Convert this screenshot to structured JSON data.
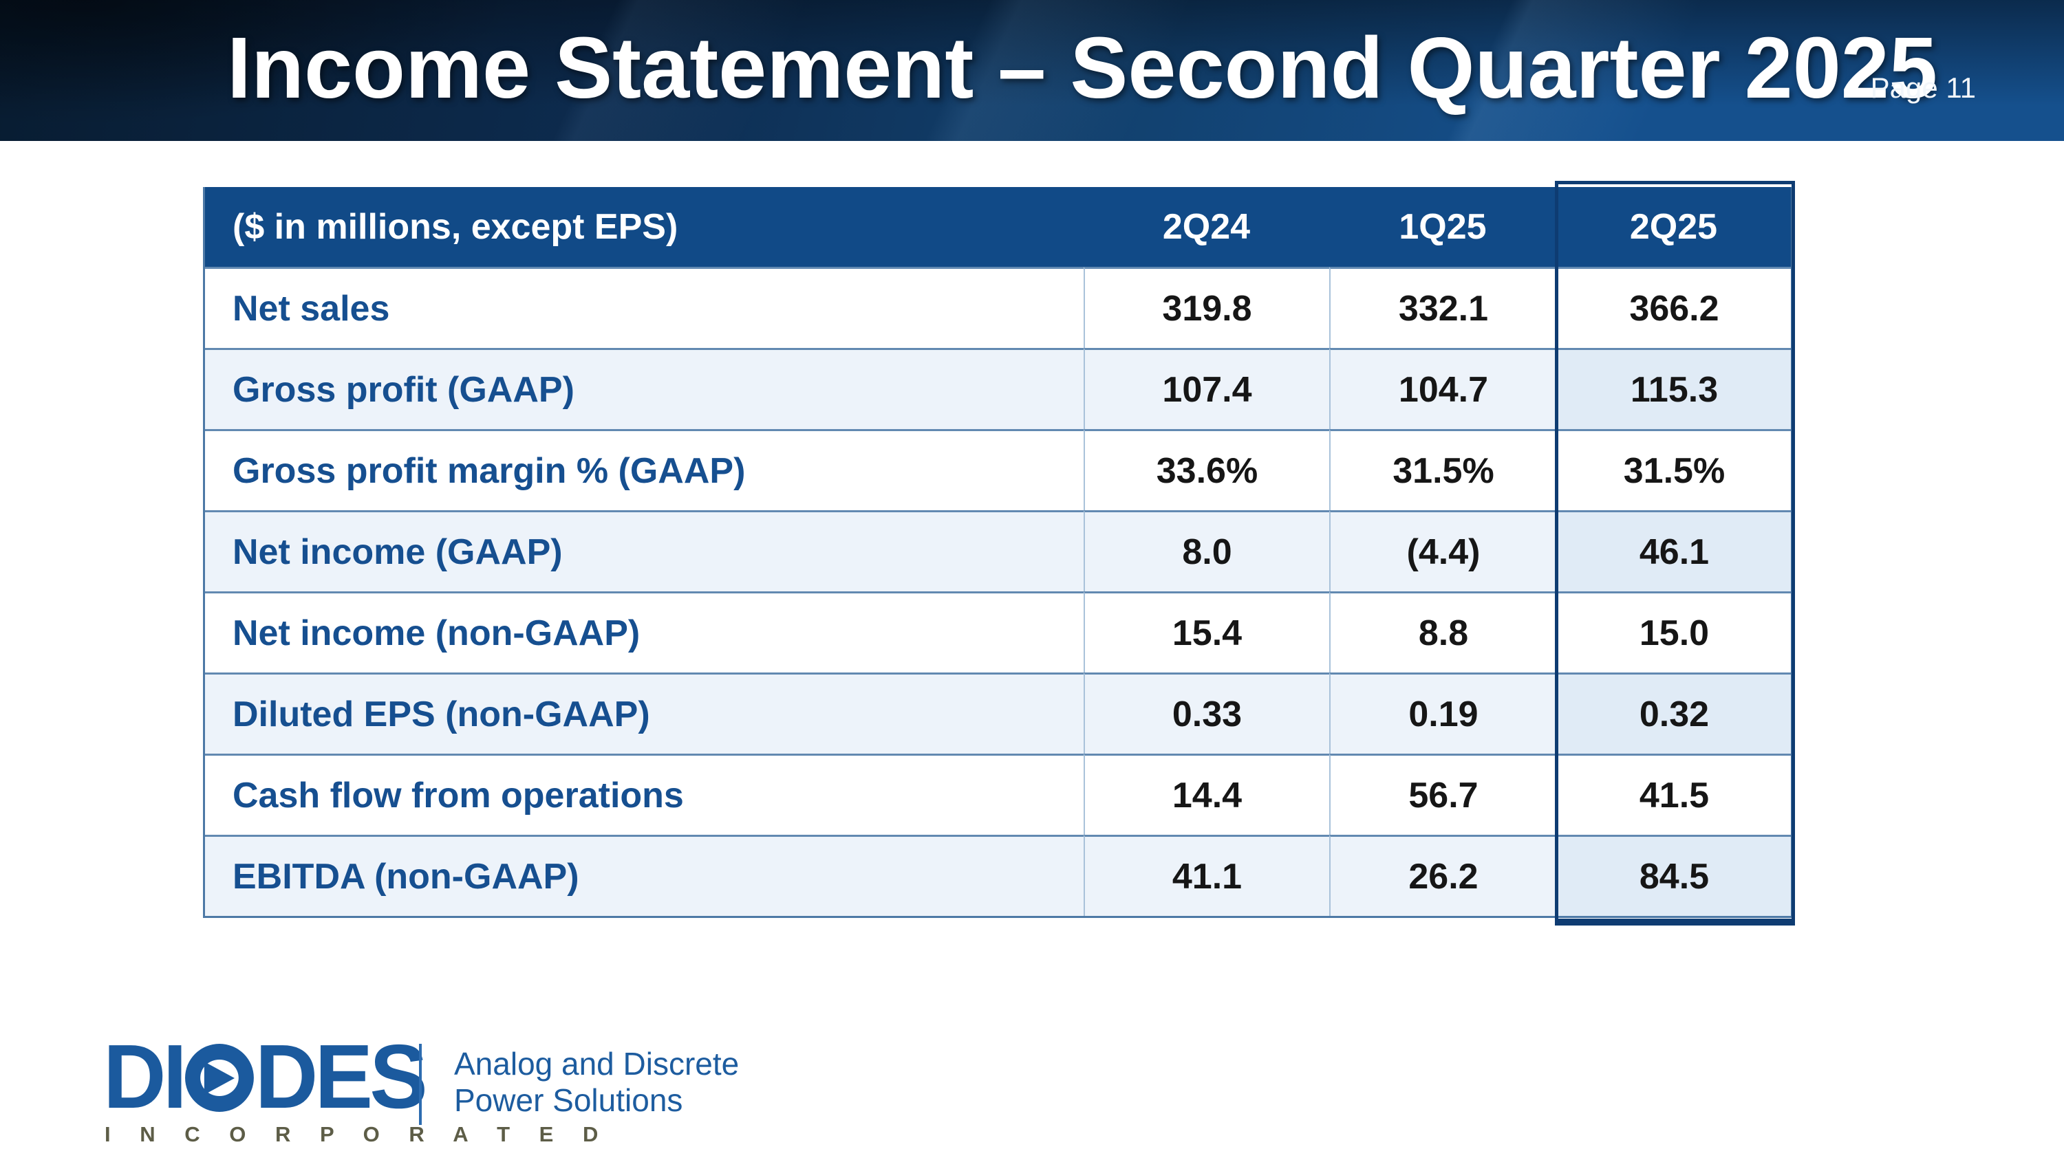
{
  "slide": {
    "title": "Income Statement – Second Quarter 2025",
    "page_label": "Page 11"
  },
  "table": {
    "header": [
      "($ in millions, except EPS)",
      "2Q24",
      "1Q25",
      "2Q25"
    ],
    "highlighted_column": "2Q25",
    "rows": [
      {
        "label": "Net sales",
        "values": [
          "319.8",
          "332.1",
          "366.2"
        ]
      },
      {
        "label": "Gross profit (GAAP)",
        "values": [
          "107.4",
          "104.7",
          "115.3"
        ]
      },
      {
        "label": "Gross profit margin % (GAAP)",
        "values": [
          "33.6%",
          "31.5%",
          "31.5%"
        ]
      },
      {
        "label": "Net income (GAAP)",
        "values": [
          "8.0",
          "(4.4)",
          "46.1"
        ]
      },
      {
        "label": "Net income (non-GAAP)",
        "values": [
          "15.4",
          "8.8",
          "15.0"
        ]
      },
      {
        "label": "Diluted EPS (non-GAAP)",
        "values": [
          "0.33",
          "0.19",
          "0.32"
        ]
      },
      {
        "label": "Cash flow from operations",
        "values": [
          "14.4",
          "56.7",
          "41.5"
        ]
      },
      {
        "label": "EBITDA (non-GAAP)",
        "values": [
          "41.1",
          "26.2",
          "84.5"
        ]
      }
    ]
  },
  "footer": {
    "logo_left": "DI",
    "logo_right": "DES",
    "logo_sub": "I N C O R P O R A T E D",
    "tagline_line1": "Analog and Discrete",
    "tagline_line2": "Power Solutions"
  },
  "colors": {
    "banner_blue": "#15508d",
    "table_header_blue": "#114a87",
    "row_stripe": "#edf3fa",
    "label_blue": "#164f90",
    "highlight_border": "#0e3c72",
    "logo_blue": "#1b5a9e",
    "incorporated_olive": "#5d5d47"
  }
}
